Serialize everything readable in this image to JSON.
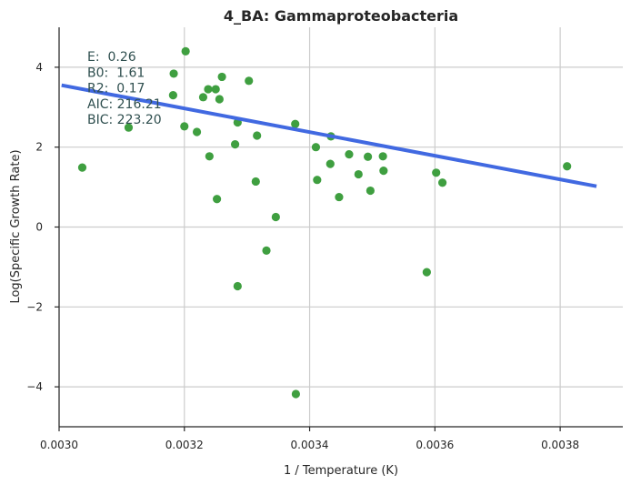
{
  "chart_data": {
    "type": "scatter",
    "title": "4_BA: Gammaproteobacteria",
    "xlabel": "1 / Temperature (K)",
    "ylabel": "Log(Specific Growth Rate)",
    "xlim": [
      0.003,
      0.0039
    ],
    "ylim": [
      -5,
      5
    ],
    "xticks": [
      "0.0030",
      "0.0032",
      "0.0034",
      "0.0036",
      "0.0038"
    ],
    "xtick_values": [
      0.003,
      0.0032,
      0.0034,
      0.0036,
      0.0038
    ],
    "yticks": [
      "−4",
      "−2",
      "0",
      "2",
      "4"
    ],
    "ytick_values": [
      -4,
      -2,
      0,
      2,
      4
    ],
    "grid": true,
    "point_color": "#3f9f40",
    "line_color": "#4169e1",
    "points": [
      {
        "x": 0.003037,
        "y": 1.49
      },
      {
        "x": 0.003111,
        "y": 2.49
      },
      {
        "x": 0.003183,
        "y": 3.84
      },
      {
        "x": 0.003182,
        "y": 3.3
      },
      {
        "x": 0.003202,
        "y": 4.4
      },
      {
        "x": 0.0032,
        "y": 2.52
      },
      {
        "x": 0.00322,
        "y": 2.38
      },
      {
        "x": 0.00323,
        "y": 3.25
      },
      {
        "x": 0.003238,
        "y": 3.45
      },
      {
        "x": 0.00324,
        "y": 1.77
      },
      {
        "x": 0.00325,
        "y": 3.45
      },
      {
        "x": 0.003252,
        "y": 0.7
      },
      {
        "x": 0.003256,
        "y": 3.2
      },
      {
        "x": 0.00326,
        "y": 3.76
      },
      {
        "x": 0.003281,
        "y": 2.07
      },
      {
        "x": 0.003285,
        "y": 2.62
      },
      {
        "x": 0.003285,
        "y": -1.48
      },
      {
        "x": 0.003303,
        "y": 3.66
      },
      {
        "x": 0.003314,
        "y": 1.14
      },
      {
        "x": 0.003316,
        "y": 2.29
      },
      {
        "x": 0.003331,
        "y": -0.59
      },
      {
        "x": 0.003346,
        "y": 0.25
      },
      {
        "x": 0.003377,
        "y": 2.58
      },
      {
        "x": 0.003378,
        "y": -4.18
      },
      {
        "x": 0.00341,
        "y": 2.0
      },
      {
        "x": 0.003412,
        "y": 1.18
      },
      {
        "x": 0.003433,
        "y": 1.58
      },
      {
        "x": 0.003434,
        "y": 2.27
      },
      {
        "x": 0.003447,
        "y": 0.75
      },
      {
        "x": 0.003463,
        "y": 1.82
      },
      {
        "x": 0.003478,
        "y": 1.32
      },
      {
        "x": 0.003493,
        "y": 1.76
      },
      {
        "x": 0.003497,
        "y": 0.91
      },
      {
        "x": 0.003517,
        "y": 1.77
      },
      {
        "x": 0.003518,
        "y": 1.41
      },
      {
        "x": 0.003587,
        "y": -1.13
      },
      {
        "x": 0.003602,
        "y": 1.36
      },
      {
        "x": 0.003612,
        "y": 1.11
      },
      {
        "x": 0.003811,
        "y": 1.52
      }
    ],
    "fit_line": {
      "x": [
        0.003004,
        0.003858
      ],
      "y": [
        3.55,
        1.02
      ]
    },
    "annotations": [
      "E:  0.26",
      "B0:  1.61",
      "R2:  0.17",
      "AIC: 216.21",
      "BIC: 223.20"
    ]
  }
}
